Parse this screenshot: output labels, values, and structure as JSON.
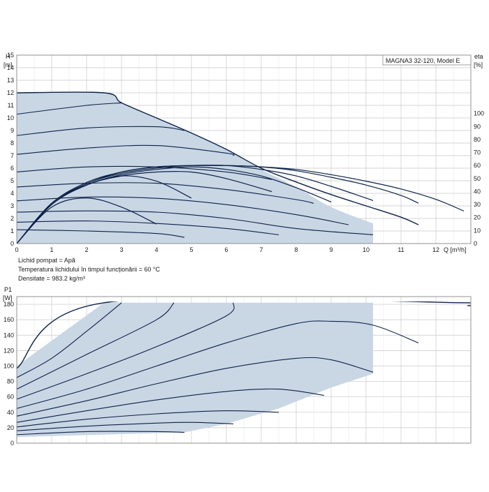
{
  "chart_data": [
    {
      "type": "line",
      "title": "MAGNA3 32-120, Model E",
      "ylabel": "H",
      "ylabel_unit": "[m]",
      "y2label": "eta",
      "y2label_unit": "[%]",
      "xlabel": "Q [m³/h]",
      "xlim": [
        0,
        13
      ],
      "ylim": [
        0,
        15
      ],
      "y2lim": [
        0,
        100
      ],
      "x_ticks": [
        0,
        1,
        2,
        3,
        4,
        5,
        6,
        7,
        8,
        9,
        10,
        11,
        12
      ],
      "y_ticks": [
        0,
        1,
        2,
        3,
        4,
        5,
        6,
        7,
        8,
        9,
        10,
        11,
        12,
        13,
        14,
        15
      ],
      "y2_ticks": [
        0,
        10,
        20,
        30,
        40,
        50,
        60,
        70,
        80,
        90,
        100
      ],
      "grid": true,
      "shaded_operating_area": [
        [
          0,
          12
        ],
        [
          2.5,
          12
        ],
        [
          3,
          11.2
        ],
        [
          4,
          10
        ],
        [
          5,
          8.8
        ],
        [
          6,
          7.5
        ],
        [
          7,
          5.9
        ],
        [
          8,
          4.5
        ],
        [
          9,
          2.9
        ],
        [
          10.2,
          1.6
        ],
        [
          10.2,
          0
        ],
        [
          0,
          0
        ]
      ],
      "series": [
        {
          "role": "max_curve",
          "values": [
            [
              0,
              12
            ],
            [
              2.5,
              12
            ],
            [
              3,
              11.2
            ],
            [
              4,
              10
            ],
            [
              5,
              8.8
            ],
            [
              6,
              7.5
            ],
            [
              7,
              6.0
            ],
            [
              8,
              4.9
            ],
            [
              9,
              3.9
            ],
            [
              10,
              3.0
            ],
            [
              11,
              2.1
            ],
            [
              11.5,
              1.5
            ]
          ]
        },
        {
          "role": "head_curve",
          "values": [
            [
              0,
              10.3
            ],
            [
              2,
              11.0
            ],
            [
              3,
              11.2
            ]
          ]
        },
        {
          "role": "head_curve",
          "values": [
            [
              0,
              8.6
            ],
            [
              2,
              9.2
            ],
            [
              4,
              9.3
            ],
            [
              4.8,
              9.0
            ]
          ]
        },
        {
          "role": "head_curve",
          "values": [
            [
              0,
              7.1
            ],
            [
              2,
              7.6
            ],
            [
              4,
              7.8
            ],
            [
              6,
              7.2
            ],
            [
              6.2,
              7.0
            ]
          ]
        },
        {
          "role": "head_curve",
          "values": [
            [
              0,
              5.7
            ],
            [
              2,
              6.1
            ],
            [
              4,
              6.1
            ],
            [
              6,
              5.7
            ],
            [
              7.3,
              5.1
            ]
          ]
        },
        {
          "role": "head_curve",
          "values": [
            [
              0,
              4.5
            ],
            [
              2,
              4.8
            ],
            [
              4,
              4.8
            ],
            [
              6,
              4.3
            ],
            [
              8,
              3.5
            ],
            [
              8.5,
              3.2
            ]
          ]
        },
        {
          "role": "head_curve",
          "values": [
            [
              0,
              3.4
            ],
            [
              2,
              3.7
            ],
            [
              4,
              3.6
            ],
            [
              6,
              3.1
            ],
            [
              8,
              2.3
            ],
            [
              9.5,
              1.5
            ]
          ]
        },
        {
          "role": "head_curve",
          "values": [
            [
              0,
              2.5
            ],
            [
              2,
              2.6
            ],
            [
              4,
              2.5
            ],
            [
              6,
              2.0
            ],
            [
              8,
              1.2
            ],
            [
              10.2,
              0.7
            ]
          ]
        },
        {
          "role": "head_curve",
          "values": [
            [
              0,
              1.7
            ],
            [
              2,
              1.8
            ],
            [
              4,
              1.6
            ],
            [
              6,
              1.2
            ],
            [
              7.5,
              0.7
            ]
          ]
        },
        {
          "role": "head_curve",
          "values": [
            [
              0,
              1.1
            ],
            [
              2,
              1.0
            ],
            [
              4,
              0.8
            ],
            [
              4.8,
              0.5
            ]
          ]
        },
        {
          "role": "eta_curve",
          "values": [
            [
              0,
              0
            ],
            [
              1,
              30
            ],
            [
              2,
              45
            ],
            [
              3,
              52
            ],
            [
              4,
              55
            ],
            [
              5,
              55
            ],
            [
              6,
              50
            ],
            [
              7.3,
              40
            ]
          ]
        },
        {
          "role": "eta_curve",
          "values": [
            [
              0,
              0
            ],
            [
              1,
              30
            ],
            [
              2,
              45
            ],
            [
              3,
              52
            ],
            [
              4,
              48
            ],
            [
              5,
              35
            ]
          ]
        },
        {
          "role": "eta_curve",
          "values": [
            [
              0,
              0
            ],
            [
              1,
              28
            ],
            [
              2,
              35
            ],
            [
              3,
              28
            ],
            [
              4,
              15
            ]
          ]
        },
        {
          "role": "eta_curve",
          "values": [
            [
              0,
              0
            ],
            [
              1,
              30
            ],
            [
              2,
              45
            ],
            [
              3,
              53
            ],
            [
              4,
              57
            ],
            [
              5,
              59
            ],
            [
              6,
              57
            ],
            [
              7,
              52
            ],
            [
              8,
              43
            ],
            [
              9,
              32
            ]
          ]
        },
        {
          "role": "eta_curve",
          "values": [
            [
              0,
              0
            ],
            [
              1,
              30
            ],
            [
              2,
              46
            ],
            [
              3,
              54
            ],
            [
              4,
              58
            ],
            [
              5,
              60
            ],
            [
              6,
              60
            ],
            [
              7,
              57
            ],
            [
              8,
              52
            ],
            [
              9,
              44
            ],
            [
              10,
              35
            ],
            [
              10.2,
              33
            ]
          ]
        },
        {
          "role": "eta_curve",
          "values": [
            [
              0,
              0
            ],
            [
              1,
              31
            ],
            [
              2,
              46
            ],
            [
              3,
              55
            ],
            [
              4,
              59
            ],
            [
              5,
              60
            ],
            [
              6,
              60
            ],
            [
              7,
              59
            ],
            [
              8,
              56
            ],
            [
              9,
              51
            ],
            [
              10,
              45
            ],
            [
              11,
              37
            ],
            [
              11.5,
              31
            ]
          ]
        },
        {
          "role": "eta_curve",
          "values": [
            [
              0,
              0
            ],
            [
              1,
              31
            ],
            [
              2,
              47
            ],
            [
              3,
              55
            ],
            [
              4,
              59
            ],
            [
              5,
              60
            ],
            [
              6,
              60
            ],
            [
              7,
              59
            ],
            [
              8,
              57
            ],
            [
              9,
              53
            ],
            [
              10,
              48
            ],
            [
              11,
              42
            ],
            [
              12,
              34
            ],
            [
              12.8,
              25
            ]
          ]
        }
      ]
    },
    {
      "type": "line",
      "ylabel": "P1",
      "ylabel_unit": "[W]",
      "xlim": [
        0,
        13
      ],
      "ylim": [
        0,
        190
      ],
      "y_ticks": [
        0,
        20,
        40,
        60,
        80,
        100,
        120,
        140,
        160,
        180
      ],
      "grid": true,
      "shaded_operating_area": [
        [
          0,
          100
        ],
        [
          2.5,
          182
        ],
        [
          10.2,
          182
        ],
        [
          10.2,
          90
        ],
        [
          9,
          72
        ],
        [
          7.5,
          45
        ],
        [
          6,
          25
        ],
        [
          4.8,
          14
        ],
        [
          0,
          8
        ]
      ],
      "series": [
        {
          "role": "max_curve",
          "values": [
            [
              0,
              97
            ],
            [
              2.5,
              182
            ],
            [
              12.8,
              182
            ],
            [
              12.9,
              178
            ]
          ]
        },
        {
          "role": "power_curve",
          "values": [
            [
              0,
              85
            ],
            [
              1,
              110
            ],
            [
              2,
              145
            ],
            [
              3,
              182
            ]
          ]
        },
        {
          "role": "power_curve",
          "values": [
            [
              0,
              70
            ],
            [
              2,
              115
            ],
            [
              4,
              160
            ],
            [
              4.5,
              182
            ]
          ]
        },
        {
          "role": "power_curve",
          "values": [
            [
              0,
              57
            ],
            [
              2,
              90
            ],
            [
              4,
              125
            ],
            [
              6,
              165
            ],
            [
              6.2,
              182
            ]
          ]
        },
        {
          "role": "power_curve",
          "values": [
            [
              0,
              45
            ],
            [
              2,
              70
            ],
            [
              4,
              100
            ],
            [
              6,
              130
            ],
            [
              8,
              155
            ],
            [
              9,
              158
            ],
            [
              10.2,
              153
            ],
            [
              11.5,
              130
            ]
          ]
        },
        {
          "role": "power_curve",
          "values": [
            [
              0,
              35
            ],
            [
              2,
              55
            ],
            [
              4,
              77
            ],
            [
              6,
              97
            ],
            [
              8,
              110
            ],
            [
              9,
              108
            ],
            [
              10.2,
              92
            ]
          ]
        },
        {
          "role": "power_curve",
          "values": [
            [
              0,
              27
            ],
            [
              2,
              42
            ],
            [
              4,
              56
            ],
            [
              6,
              67
            ],
            [
              7.5,
              70
            ],
            [
              8.8,
              62
            ]
          ]
        },
        {
          "role": "power_curve",
          "values": [
            [
              0,
              21
            ],
            [
              2,
              31
            ],
            [
              4,
              38
            ],
            [
              6,
              42
            ],
            [
              7.5,
              40
            ]
          ]
        },
        {
          "role": "power_curve",
          "values": [
            [
              0,
              16
            ],
            [
              2,
              22
            ],
            [
              4,
              26
            ],
            [
              5,
              27
            ],
            [
              6.2,
              25
            ]
          ]
        },
        {
          "role": "power_curve",
          "values": [
            [
              0,
              11
            ],
            [
              2,
              15
            ],
            [
              4,
              15
            ],
            [
              4.8,
              14
            ]
          ]
        }
      ]
    }
  ],
  "info": {
    "line1": "Lichid pompat = Apă",
    "line2": "Temperatura lichidului în timpul funcționării = 60 °C",
    "line3": "Densitate = 983.2 kg/m³"
  },
  "colors": {
    "curve": "#0b2148",
    "shade": "#c9d6e4",
    "grid": "#c8c8c8",
    "frame": "#888888"
  }
}
